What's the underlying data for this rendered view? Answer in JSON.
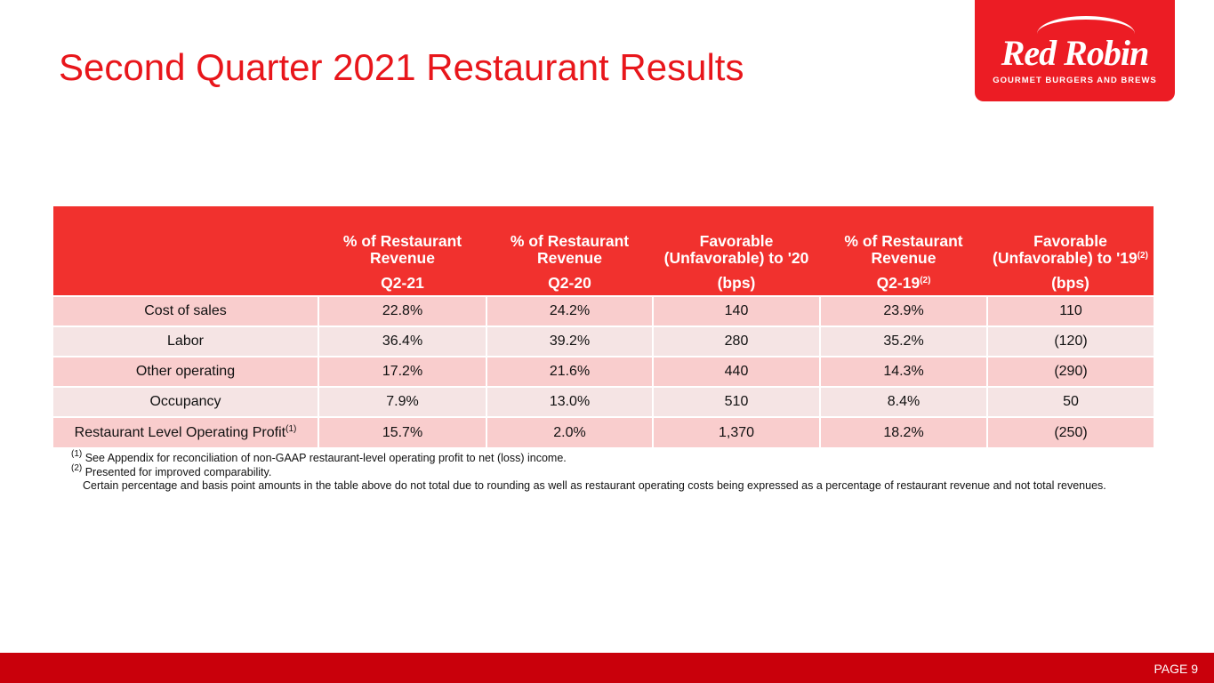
{
  "title": "Second Quarter 2021 Restaurant Results",
  "logo": {
    "brand": "Red Robin",
    "tagline": "GOURMET BURGERS AND BREWS"
  },
  "table": {
    "headers": [
      {
        "top": "",
        "bottom": ""
      },
      {
        "top": "% of Restaurant Revenue",
        "bottom": "Q2-21"
      },
      {
        "top": "% of Restaurant Revenue",
        "bottom": "Q2-20"
      },
      {
        "top": "Favorable (Unfavorable) to '20",
        "bottom": "(bps)"
      },
      {
        "top": "% of Restaurant Revenue",
        "bottom": "Q2-19",
        "bottom_sup": "(2)"
      },
      {
        "top": "Favorable (Unfavorable) to '19",
        "top_sup": "(2)",
        "bottom": "(bps)"
      }
    ],
    "rows": [
      {
        "label": "Cost of sales",
        "sup": "",
        "values": [
          "22.8%",
          "24.2%",
          "140",
          "23.9%",
          "110"
        ]
      },
      {
        "label": "Labor",
        "sup": "",
        "values": [
          "36.4%",
          "39.2%",
          "280",
          "35.2%",
          "(120)"
        ]
      },
      {
        "label": "Other operating",
        "sup": "",
        "values": [
          "17.2%",
          "21.6%",
          "440",
          "14.3%",
          "(290)"
        ]
      },
      {
        "label": "Occupancy",
        "sup": "",
        "values": [
          "7.9%",
          "13.0%",
          "510",
          "8.4%",
          "50"
        ]
      },
      {
        "label": "Restaurant Level Operating Profit",
        "sup": "(1)",
        "values": [
          "15.7%",
          "2.0%",
          "1,370",
          "18.2%",
          "(250)"
        ]
      }
    ]
  },
  "notes": [
    {
      "sup": "(1)",
      "text": "See Appendix for reconciliation of non-GAAP restaurant-level operating profit to net (loss) income."
    },
    {
      "sup": "(2)",
      "text": "Presented for improved comparability."
    },
    {
      "sup": "",
      "text": "Certain percentage and basis point amounts in the table above do not total due to rounding as well as restaurant operating costs being expressed as a percentage of restaurant revenue and not total revenues."
    }
  ],
  "footer": {
    "page": "PAGE 9"
  },
  "colors": {
    "accent": "#e8161b",
    "header": "#f1312e",
    "row_odd": "#f9cdcd",
    "row_even": "#f5e4e4",
    "footer": "#c9000b"
  }
}
